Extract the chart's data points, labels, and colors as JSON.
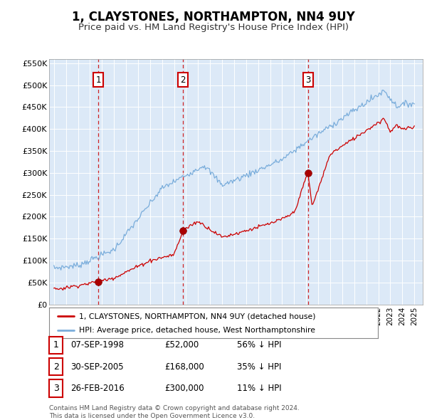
{
  "title": "1, CLAYSTONES, NORTHAMPTON, NN4 9UY",
  "subtitle": "Price paid vs. HM Land Registry's House Price Index (HPI)",
  "title_fontsize": 12,
  "subtitle_fontsize": 9.5,
  "background_color": "#ffffff",
  "plot_bg_color": "#dce9f7",
  "grid_color": "#ffffff",
  "hpi_color": "#7aaddb",
  "price_color": "#cc0000",
  "ylim": [
    0,
    560000
  ],
  "yticks": [
    0,
    50000,
    100000,
    150000,
    200000,
    250000,
    300000,
    350000,
    400000,
    450000,
    500000,
    550000
  ],
  "ytick_labels": [
    "£0",
    "£50K",
    "£100K",
    "£150K",
    "£200K",
    "£250K",
    "£300K",
    "£350K",
    "£400K",
    "£450K",
    "£500K",
    "£550K"
  ],
  "sale_dates_num": [
    1998.69,
    2005.75,
    2016.15
  ],
  "sale_prices": [
    52000,
    168000,
    300000
  ],
  "sale_labels": [
    "1",
    "2",
    "3"
  ],
  "sale_dates_str": [
    "07-SEP-1998",
    "30-SEP-2005",
    "26-FEB-2016"
  ],
  "sale_prices_str": [
    "£52,000",
    "£168,000",
    "£300,000"
  ],
  "sale_hpi_str": [
    "56% ↓ HPI",
    "35% ↓ HPI",
    "11% ↓ HPI"
  ],
  "legend_line1": "1, CLAYSTONES, NORTHAMPTON, NN4 9UY (detached house)",
  "legend_line2": "HPI: Average price, detached house, West Northamptonshire",
  "footnote1": "Contains HM Land Registry data © Crown copyright and database right 2024.",
  "footnote2": "This data is licensed under the Open Government Licence v3.0."
}
